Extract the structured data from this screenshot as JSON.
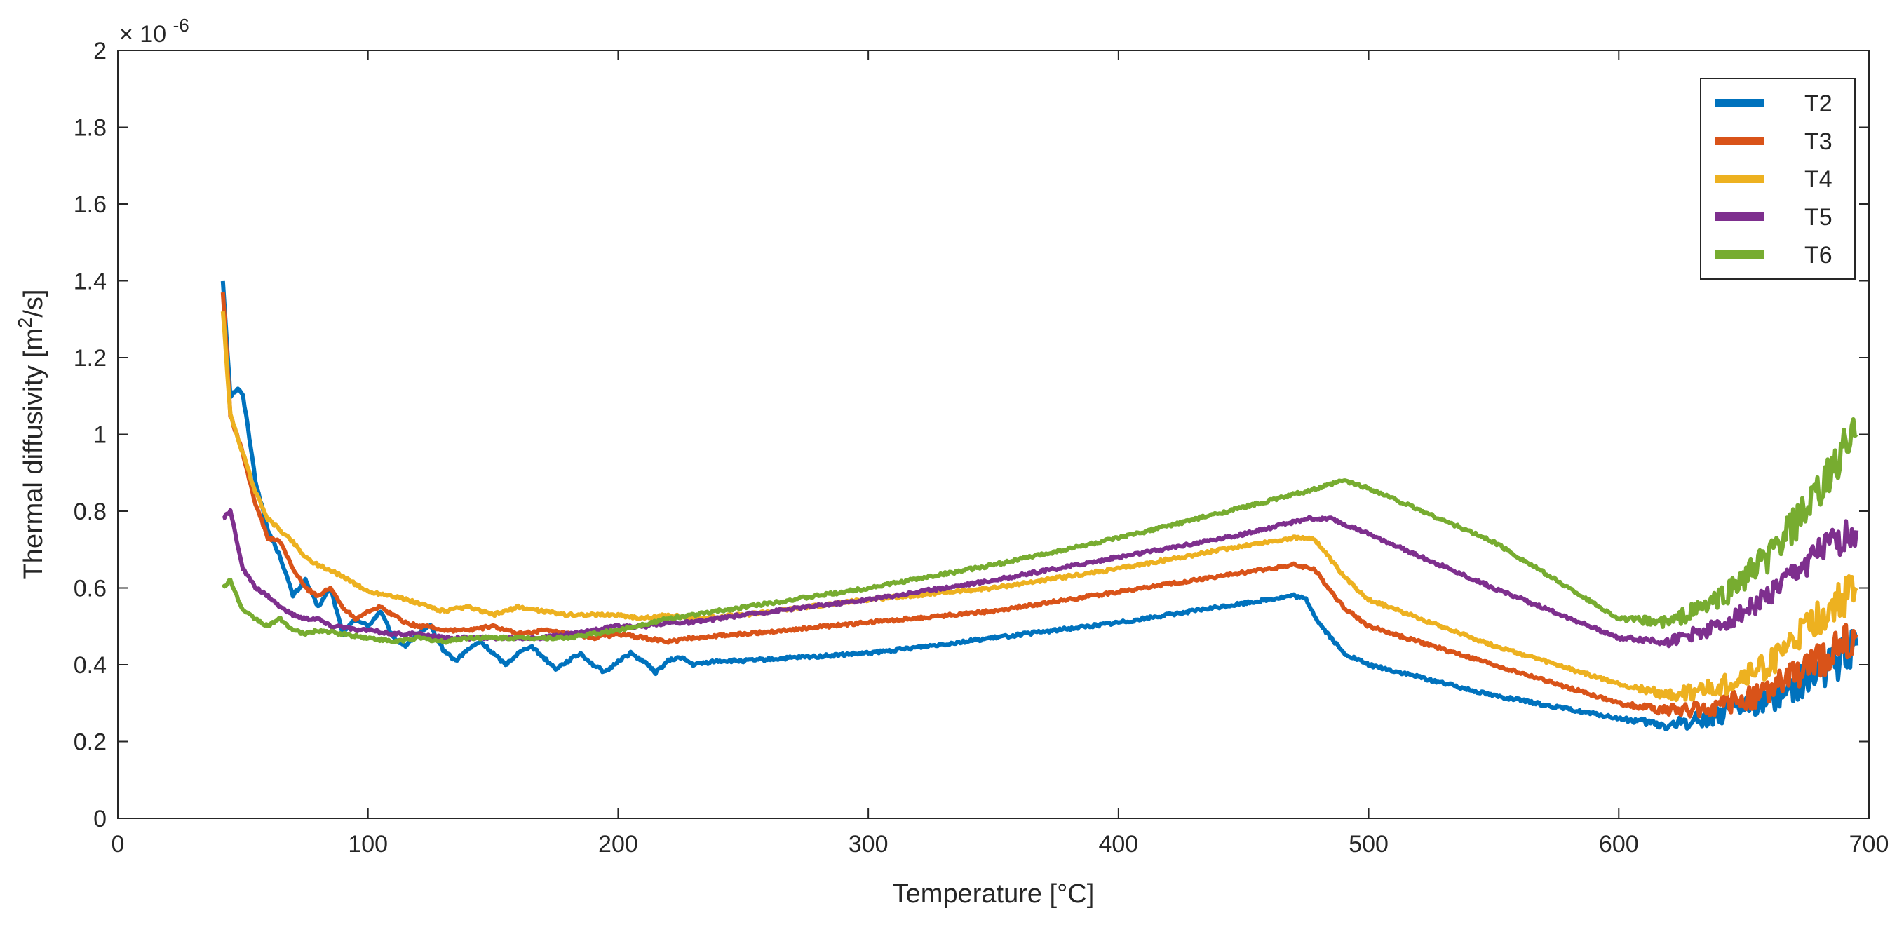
{
  "chart_data": {
    "type": "line",
    "xlabel": "Temperature [°C]",
    "ylabel_prefix": "Thermal diffusivity [m",
    "ylabel_sup": "2",
    "ylabel_suffix": "/s]",
    "y_exponent_base": "× 10",
    "y_exponent_power": "-6",
    "xlim": [
      0,
      700
    ],
    "ylim": [
      0,
      2
    ],
    "x_ticks": [
      0,
      100,
      200,
      300,
      400,
      500,
      600,
      700
    ],
    "x_tick_labels": [
      "0",
      "100",
      "200",
      "300",
      "400",
      "500",
      "600",
      "700"
    ],
    "y_ticks": [
      0,
      0.2,
      0.4,
      0.6,
      0.8,
      1.0,
      1.2,
      1.4,
      1.6,
      1.8,
      2.0
    ],
    "y_tick_labels": [
      "0",
      "0.2",
      "0.4",
      "0.6",
      "0.8",
      "1",
      "1.2",
      "1.4",
      "1.6",
      "1.8",
      "2"
    ],
    "grid": false,
    "legend_position": "top-right",
    "series": [
      {
        "name": "T2",
        "color": "#0072BD",
        "x": [
          42,
          45,
          48,
          50,
          52,
          55,
          60,
          65,
          70,
          75,
          80,
          85,
          90,
          95,
          100,
          105,
          110,
          115,
          120,
          125,
          130,
          135,
          140,
          145,
          150,
          155,
          160,
          165,
          170,
          175,
          180,
          185,
          190,
          195,
          200,
          205,
          210,
          215,
          220,
          225,
          230,
          240,
          250,
          300,
          350,
          400,
          450,
          470,
          475,
          480,
          490,
          500,
          550,
          600,
          620,
          640,
          660,
          680,
          690,
          695
        ],
        "y": [
          1.4,
          1.1,
          1.12,
          1.1,
          1.02,
          0.88,
          0.75,
          0.68,
          0.58,
          0.62,
          0.55,
          0.6,
          0.48,
          0.52,
          0.5,
          0.54,
          0.47,
          0.45,
          0.48,
          0.5,
          0.44,
          0.41,
          0.44,
          0.46,
          0.43,
          0.4,
          0.43,
          0.45,
          0.42,
          0.39,
          0.41,
          0.43,
          0.4,
          0.38,
          0.41,
          0.43,
          0.41,
          0.38,
          0.41,
          0.42,
          0.4,
          0.41,
          0.41,
          0.43,
          0.47,
          0.51,
          0.56,
          0.58,
          0.57,
          0.51,
          0.43,
          0.4,
          0.32,
          0.26,
          0.24,
          0.27,
          0.31,
          0.38,
          0.42,
          0.45
        ]
      },
      {
        "name": "T3",
        "color": "#D95319",
        "x": [
          42,
          45,
          50,
          55,
          60,
          65,
          70,
          75,
          80,
          85,
          90,
          95,
          100,
          105,
          110,
          115,
          120,
          125,
          130,
          140,
          150,
          160,
          170,
          180,
          190,
          200,
          210,
          220,
          230,
          250,
          300,
          350,
          400,
          450,
          470,
          478,
          490,
          500,
          550,
          600,
          620,
          640,
          660,
          680,
          695
        ],
        "y": [
          1.37,
          1.05,
          0.95,
          0.82,
          0.73,
          0.72,
          0.65,
          0.6,
          0.58,
          0.6,
          0.55,
          0.52,
          0.54,
          0.55,
          0.53,
          0.51,
          0.5,
          0.5,
          0.49,
          0.49,
          0.5,
          0.48,
          0.49,
          0.48,
          0.47,
          0.48,
          0.47,
          0.46,
          0.47,
          0.48,
          0.51,
          0.54,
          0.59,
          0.64,
          0.66,
          0.65,
          0.55,
          0.5,
          0.4,
          0.3,
          0.28,
          0.29,
          0.33,
          0.41,
          0.48
        ]
      },
      {
        "name": "T4",
        "color": "#EDB120",
        "x": [
          42,
          45,
          50,
          55,
          60,
          65,
          70,
          75,
          80,
          90,
          100,
          110,
          120,
          130,
          140,
          150,
          160,
          170,
          180,
          190,
          200,
          210,
          220,
          230,
          250,
          300,
          350,
          400,
          450,
          470,
          478,
          490,
          500,
          550,
          600,
          620,
          640,
          660,
          680,
          695
        ],
        "y": [
          1.32,
          1.05,
          0.95,
          0.85,
          0.78,
          0.75,
          0.72,
          0.68,
          0.66,
          0.63,
          0.59,
          0.58,
          0.56,
          0.54,
          0.55,
          0.53,
          0.55,
          0.54,
          0.53,
          0.53,
          0.53,
          0.52,
          0.53,
          0.52,
          0.53,
          0.57,
          0.6,
          0.65,
          0.71,
          0.73,
          0.73,
          0.63,
          0.57,
          0.45,
          0.35,
          0.32,
          0.34,
          0.4,
          0.52,
          0.6
        ]
      },
      {
        "name": "T5",
        "color": "#7E2F8E",
        "x": [
          42,
          45,
          50,
          55,
          60,
          65,
          70,
          75,
          80,
          85,
          90,
          95,
          100,
          110,
          120,
          130,
          140,
          150,
          160,
          170,
          180,
          190,
          200,
          210,
          220,
          230,
          250,
          300,
          350,
          400,
          450,
          475,
          485,
          500,
          550,
          600,
          620,
          640,
          660,
          680,
          695
        ],
        "y": [
          0.78,
          0.8,
          0.65,
          0.6,
          0.58,
          0.55,
          0.53,
          0.52,
          0.52,
          0.5,
          0.5,
          0.49,
          0.49,
          0.48,
          0.48,
          0.47,
          0.47,
          0.47,
          0.47,
          0.47,
          0.48,
          0.49,
          0.5,
          0.5,
          0.51,
          0.51,
          0.53,
          0.57,
          0.62,
          0.68,
          0.74,
          0.78,
          0.78,
          0.74,
          0.6,
          0.47,
          0.46,
          0.5,
          0.58,
          0.69,
          0.75
        ]
      },
      {
        "name": "T6",
        "color": "#77AC30",
        "x": [
          42,
          45,
          50,
          55,
          60,
          65,
          70,
          75,
          80,
          90,
          100,
          110,
          120,
          130,
          140,
          150,
          160,
          170,
          180,
          190,
          200,
          220,
          250,
          300,
          350,
          400,
          450,
          480,
          490,
          500,
          550,
          600,
          620,
          640,
          660,
          680,
          690,
          695
        ],
        "y": [
          0.6,
          0.62,
          0.54,
          0.52,
          0.5,
          0.52,
          0.49,
          0.48,
          0.49,
          0.48,
          0.47,
          0.46,
          0.47,
          0.46,
          0.47,
          0.47,
          0.47,
          0.47,
          0.47,
          0.48,
          0.49,
          0.52,
          0.55,
          0.6,
          0.66,
          0.73,
          0.81,
          0.86,
          0.88,
          0.86,
          0.72,
          0.52,
          0.51,
          0.57,
          0.68,
          0.84,
          0.96,
          1.0
        ]
      }
    ]
  }
}
